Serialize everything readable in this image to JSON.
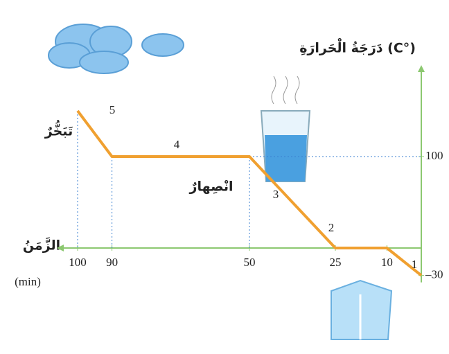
{
  "chart_data": {
    "type": "line",
    "y_label": "دَرَجَةُ الْحَرارَةِ (C°)",
    "x_label": "الزَّمَنُ",
    "x_unit": "(min)",
    "annotations": [
      "تَبَخُّرٌ",
      "انْصِهارٌ",
      "1",
      "2",
      "3",
      "4",
      "5"
    ],
    "series": [
      {
        "color": "#f0a030",
        "x": [
          0,
          10,
          25,
          50,
          90,
          100
        ],
        "values": [
          -30,
          0,
          0,
          100,
          100,
          150
        ]
      }
    ],
    "xlim": [
      0,
      100
    ],
    "xticks": [
      100,
      90,
      50,
      25,
      10
    ],
    "ylim": [
      -30,
      150
    ],
    "yticks": [
      100,
      {
        "value": -30,
        "label": "–30"
      }
    ],
    "axis_color": "#8cc870",
    "guide_color": "#3a7fd0"
  }
}
